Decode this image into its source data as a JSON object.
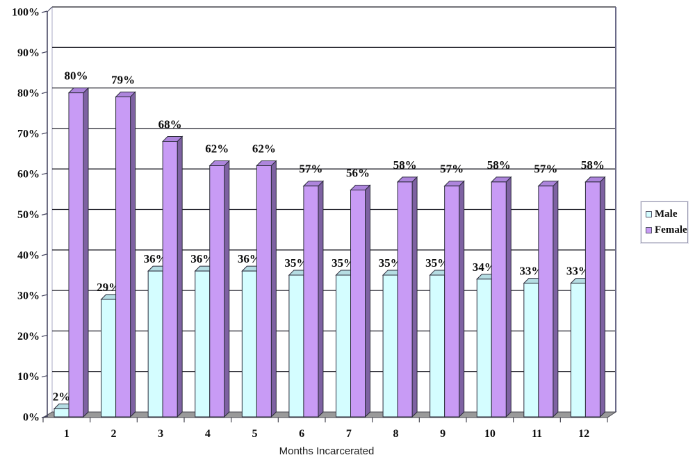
{
  "chart_data": {
    "type": "bar",
    "style": "3d-column",
    "title": "",
    "xlabel": "Months Incarcerated",
    "ylabel": "",
    "ylim": [
      0,
      100
    ],
    "grid": true,
    "legend_position": "right",
    "categories": [
      "1",
      "2",
      "3",
      "4",
      "5",
      "6",
      "7",
      "8",
      "9",
      "10",
      "11",
      "12"
    ],
    "series": [
      {
        "name": "Male",
        "values": [
          2,
          29,
          36,
          36,
          36,
          35,
          35,
          35,
          35,
          34,
          33,
          33
        ],
        "color": "#D4FDFF",
        "color_top": "#B5DDE3",
        "color_side": "#93B8C2"
      },
      {
        "name": "Female",
        "values": [
          80,
          79,
          68,
          62,
          62,
          57,
          56,
          58,
          57,
          58,
          57,
          58
        ],
        "color": "#C89BF5",
        "color_top": "#AD85DC",
        "color_side": "#7E62A2"
      }
    ],
    "value_label_suffix": "%",
    "y_tick_labels": [
      "0%",
      "10%",
      "20%",
      "30%",
      "40%",
      "50%",
      "60%",
      "70%",
      "80%",
      "90%",
      "100%"
    ],
    "colors": {
      "gridline": "#1f1f28",
      "axis": "#3e3e5a",
      "wall_left_edge": "#a8a8c4",
      "wall_right_edge": "#6a6a88",
      "floor_fill": "#9a9a9a",
      "floor_edge": "#44444e",
      "bar_outline": "#2b2b3a",
      "label_text": "#0d0d0d"
    }
  }
}
